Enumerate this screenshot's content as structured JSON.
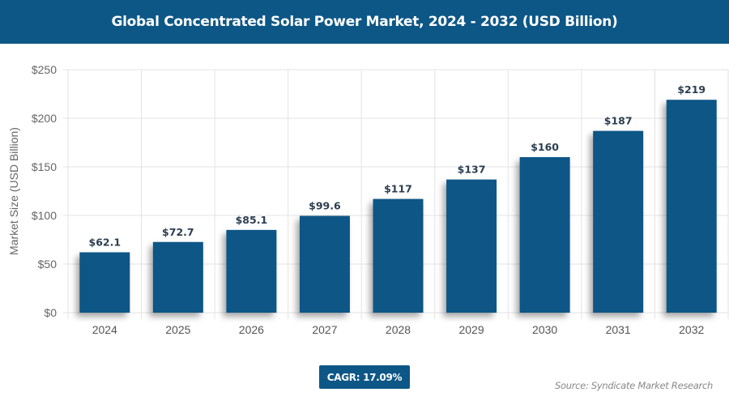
{
  "chart_data": {
    "type": "bar",
    "title": "Global Concentrated Solar Power Market, 2024 - 2032 (USD Billion)",
    "categories": [
      "2024",
      "2025",
      "2026",
      "2027",
      "2028",
      "2029",
      "2030",
      "2031",
      "2032"
    ],
    "values": [
      62.1,
      72.7,
      85.1,
      99.6,
      117,
      137,
      160,
      187,
      219
    ],
    "data_labels": [
      "$62.1",
      "$72.7",
      "$85.1",
      "$99.6",
      "$117",
      "$137",
      "$160",
      "$187",
      "$219"
    ],
    "xlabel": "",
    "ylabel": "Market Size (USD Billion)",
    "ylim": [
      0,
      250
    ],
    "yticks": [
      0,
      50,
      100,
      150,
      200,
      250
    ],
    "ytick_labels": [
      "$0",
      "$50",
      "$100",
      "$150",
      "$200",
      "$250"
    ],
    "grid": true,
    "bar_color": "#0d5786"
  },
  "cagr": "CAGR: 17.09%",
  "source": "Source: Syndicate Market Research"
}
